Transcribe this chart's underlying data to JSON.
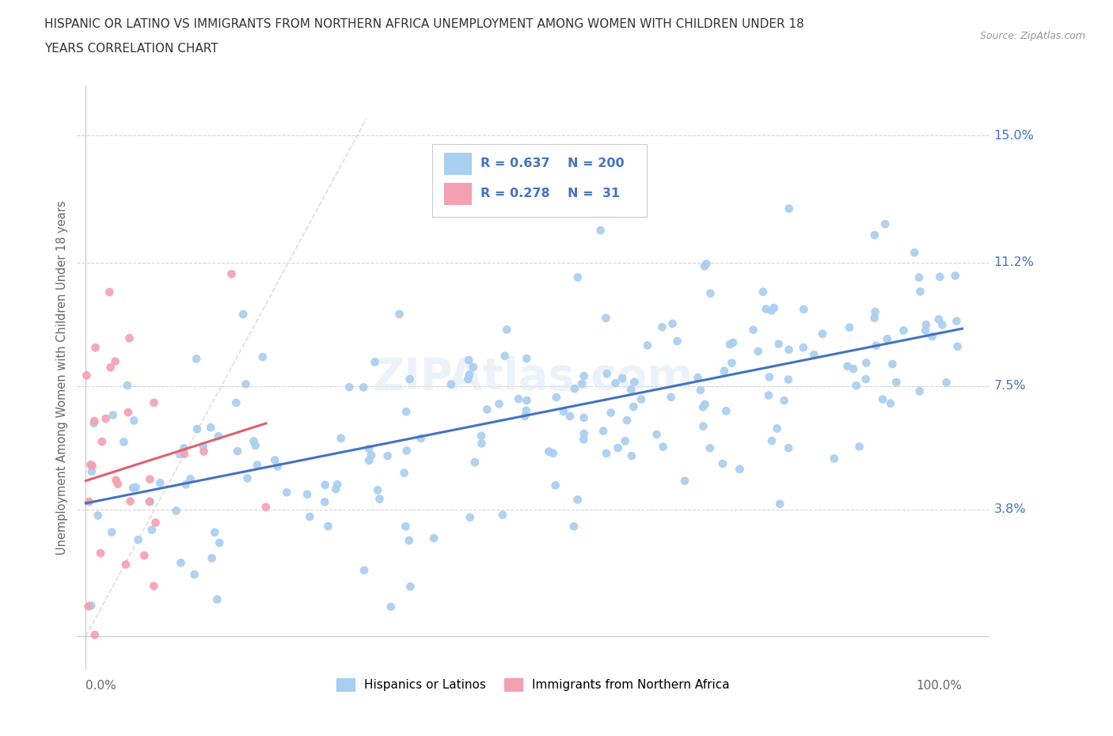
{
  "title_line1": "HISPANIC OR LATINO VS IMMIGRANTS FROM NORTHERN AFRICA UNEMPLOYMENT AMONG WOMEN WITH CHILDREN UNDER 18",
  "title_line2": "YEARS CORRELATION CHART",
  "source": "Source: ZipAtlas.com",
  "ylabel": "Unemployment Among Women with Children Under 18 years",
  "y_ticks": [
    3.8,
    7.5,
    11.2,
    15.0
  ],
  "legend_r1": "0.637",
  "legend_n1": "200",
  "legend_r2": "0.278",
  "legend_n2": " 31",
  "color_blue": "#a8cef0",
  "color_pink": "#f4a0b0",
  "color_blue_text": "#4472c4",
  "trend_blue": "#4472c4",
  "trend_pink": "#e06070",
  "diag_line": "#d0d0d0",
  "background": "#ffffff",
  "watermark": "ZIPAtlas.com",
  "n_blue": 200,
  "n_pink": 31
}
